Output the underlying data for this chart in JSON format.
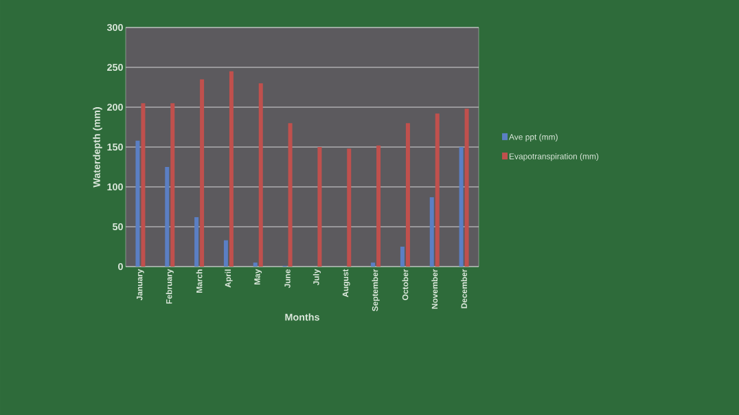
{
  "chart_data": {
    "type": "bar",
    "xlabel": "Months",
    "ylabel": "Waterdepth (mm)",
    "categories": [
      "January",
      "February",
      "March",
      "April",
      "May",
      "June",
      "July",
      "August",
      "September",
      "October",
      "November",
      "December"
    ],
    "series": [
      {
        "name": "Ave ppt (mm)",
        "color": "#5b7fc4",
        "values": [
          158,
          125,
          62,
          33,
          5,
          1,
          0,
          0,
          5,
          25,
          87,
          150
        ]
      },
      {
        "name": "Evapotranspiration (mm)",
        "color": "#c0504d",
        "values": [
          205,
          205,
          235,
          245,
          230,
          180,
          150,
          148,
          152,
          180,
          192,
          198
        ]
      }
    ],
    "ylim": [
      0,
      300
    ],
    "yticks": [
      0,
      50,
      100,
      150,
      200,
      250,
      300
    ],
    "grid": "y",
    "legend": "right"
  }
}
